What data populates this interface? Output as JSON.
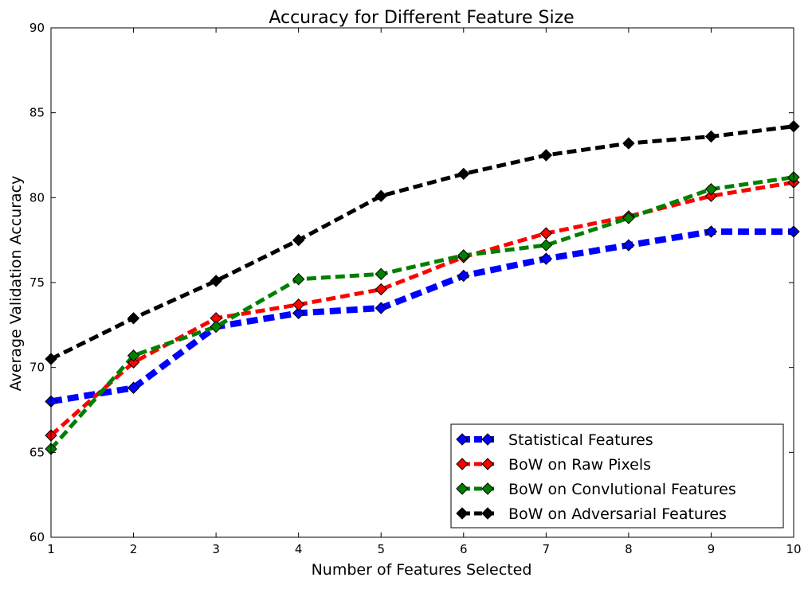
{
  "chart_data": {
    "type": "line",
    "title": "Accuracy for Different Feature Size",
    "xlabel": "Number of Features Selected",
    "ylabel": "Average Validation Accuracy",
    "xlim": [
      1,
      10
    ],
    "ylim": [
      60,
      90
    ],
    "xticks": [
      1,
      2,
      3,
      4,
      5,
      6,
      7,
      8,
      9,
      10
    ],
    "yticks": [
      60,
      65,
      70,
      75,
      80,
      85,
      90
    ],
    "grid": false,
    "legend_position": "bottom-right",
    "x": [
      1,
      2,
      3,
      4,
      5,
      6,
      7,
      8,
      9,
      10
    ],
    "series": [
      {
        "name": "Statistical Features",
        "color": "#0000ff",
        "values": [
          68.0,
          68.8,
          72.4,
          73.2,
          73.5,
          75.4,
          76.4,
          77.2,
          78.0,
          78.0
        ]
      },
      {
        "name": "BoW on Raw Pixels",
        "color": "#ff0000",
        "values": [
          66.0,
          70.3,
          72.9,
          73.7,
          74.6,
          76.5,
          77.9,
          78.9,
          80.1,
          80.9
        ]
      },
      {
        "name": "BoW on Convlutional Features",
        "color": "#008000",
        "values": [
          65.2,
          70.7,
          72.4,
          75.2,
          75.5,
          76.6,
          77.2,
          78.8,
          80.5,
          81.2
        ]
      },
      {
        "name": "BoW on Adversarial Features",
        "color": "#000000",
        "values": [
          70.5,
          72.9,
          75.1,
          77.5,
          80.1,
          81.4,
          82.5,
          83.2,
          83.6,
          84.2
        ]
      }
    ]
  }
}
